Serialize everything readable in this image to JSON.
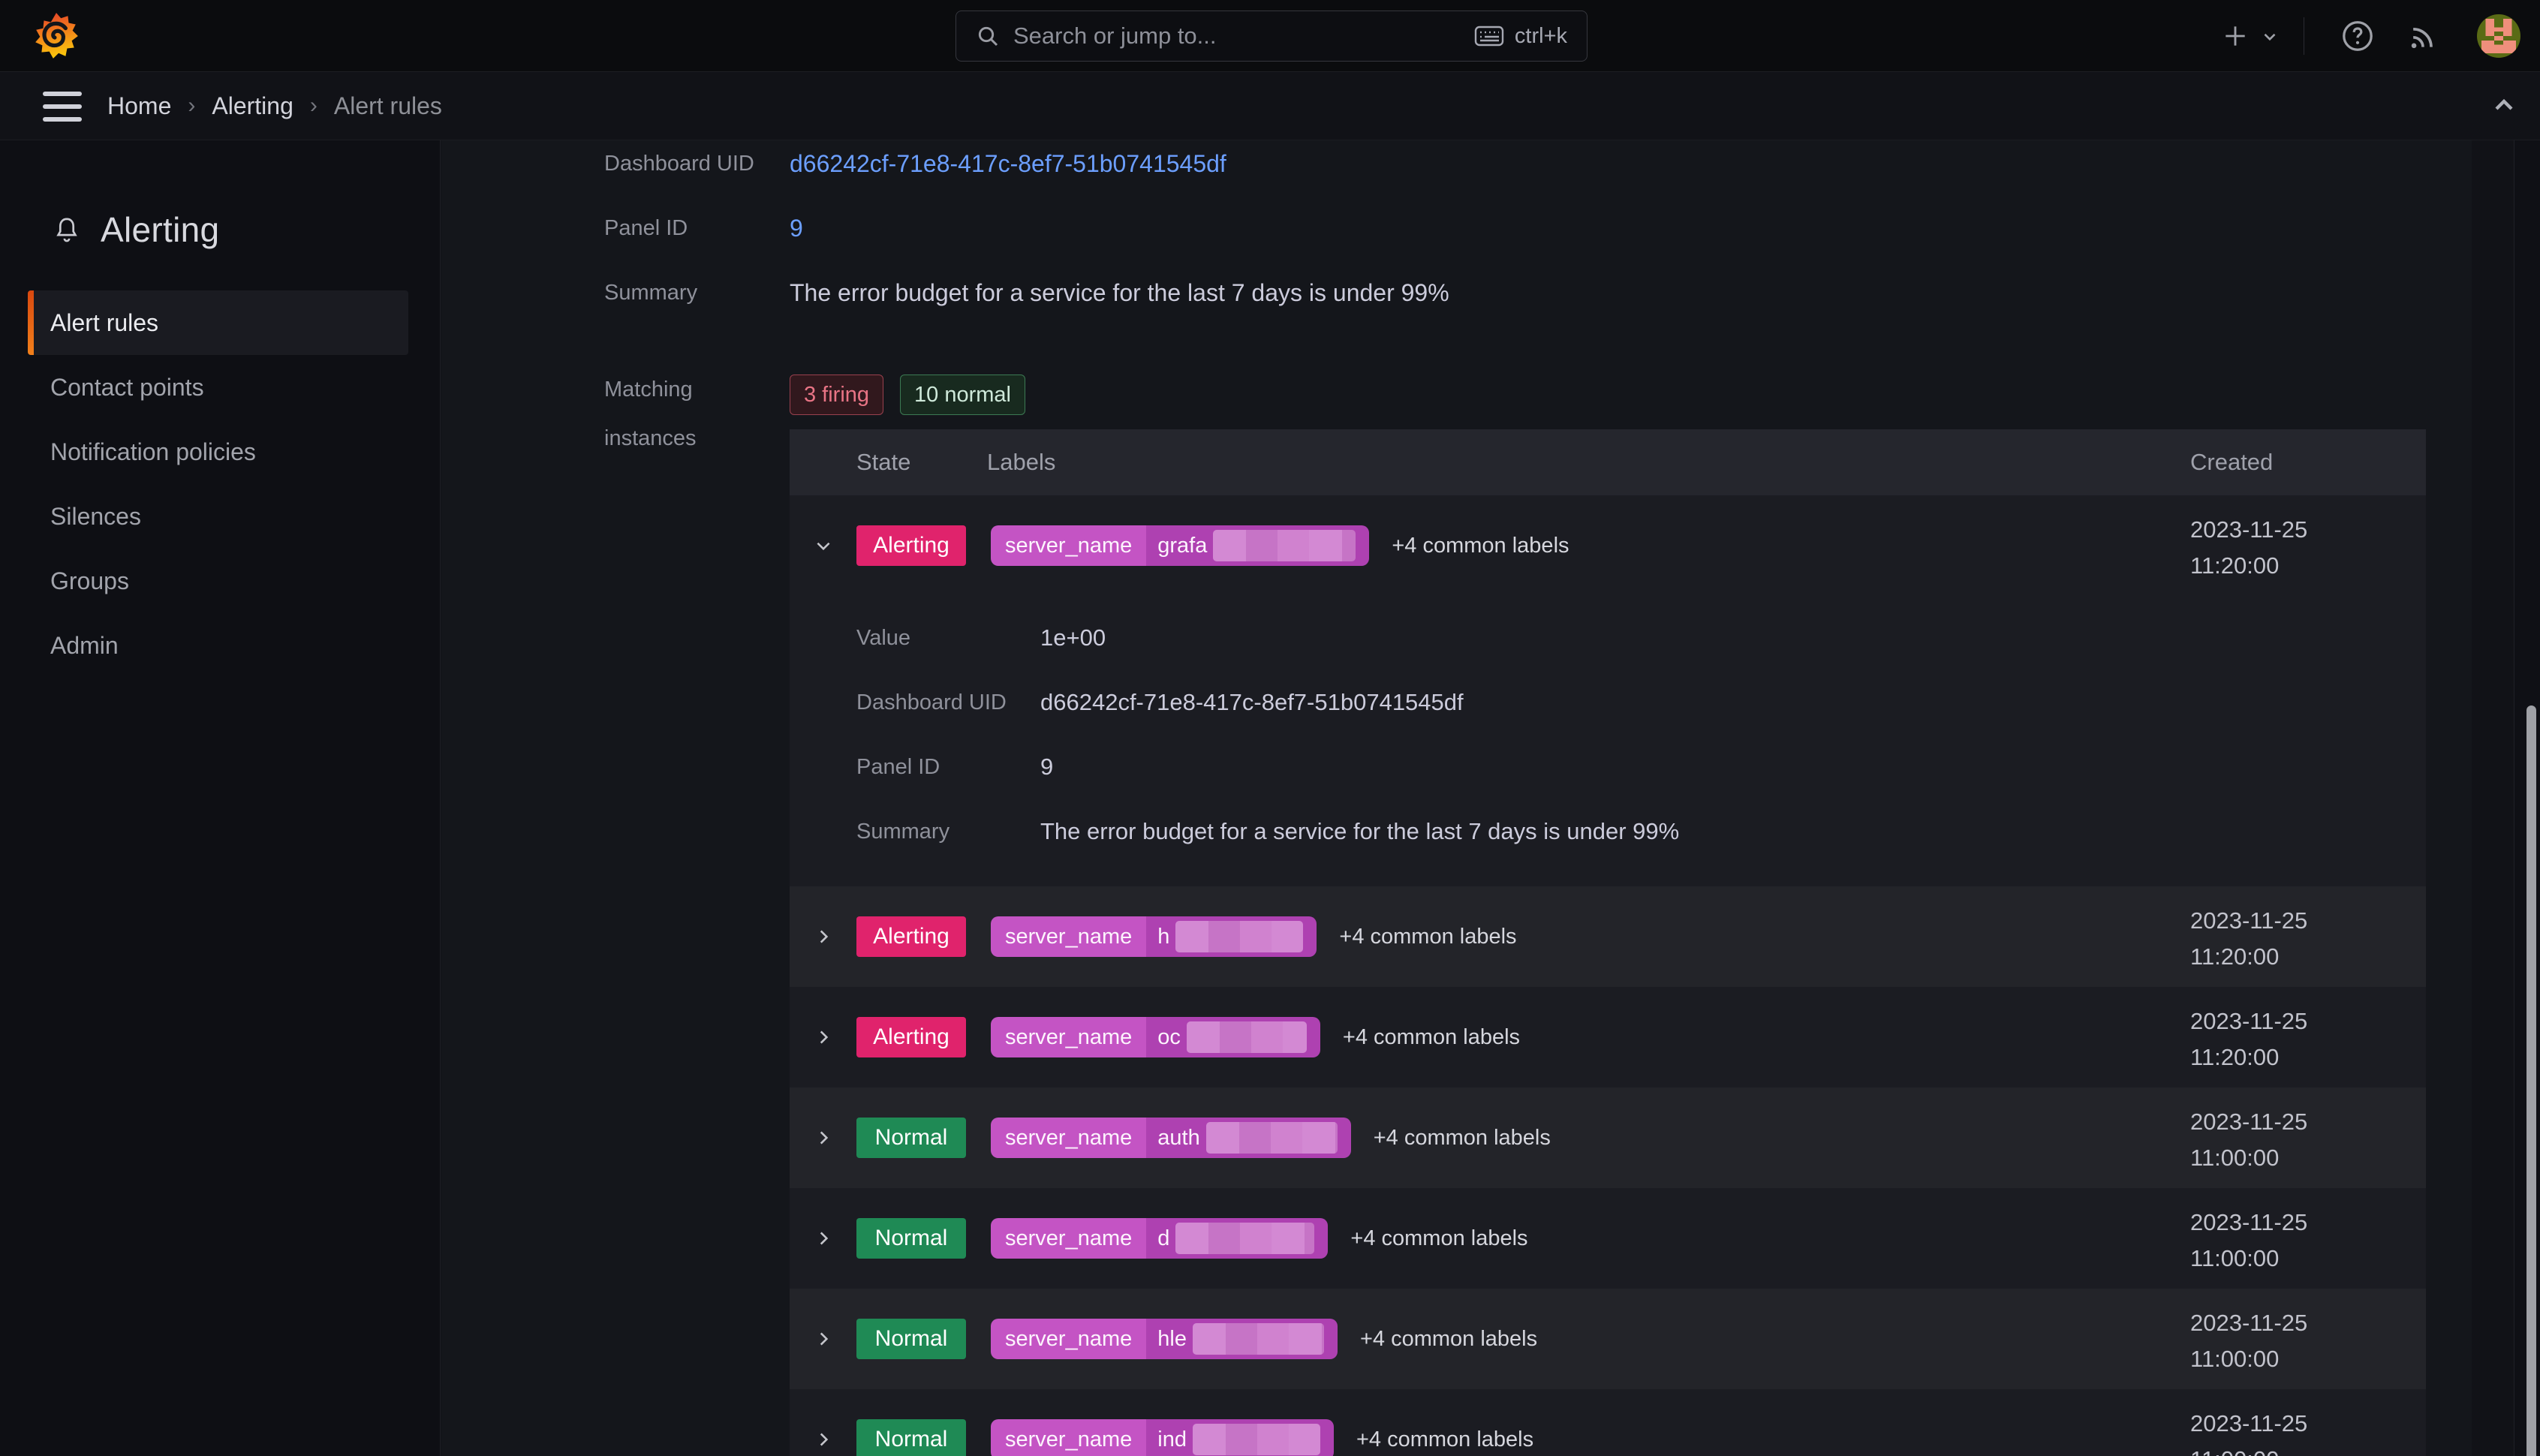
{
  "topbar": {
    "search_placeholder": "Search or jump to...",
    "shortcut": "ctrl+k"
  },
  "breadcrumb": {
    "items": [
      "Home",
      "Alerting",
      "Alert rules"
    ]
  },
  "sidebar": {
    "title": "Alerting",
    "items": [
      "Alert rules",
      "Contact points",
      "Notification policies",
      "Silences",
      "Groups",
      "Admin"
    ],
    "active_item": "Alert rules"
  },
  "rule_fields": [
    {
      "label": "Dashboard UID",
      "value": "d66242cf-71e8-417c-8ef7-51b0741545df",
      "link": true
    },
    {
      "label": "Panel ID",
      "value": "9",
      "link": true
    },
    {
      "label": "Summary",
      "value": "The error budget for a service for the last 7 days is under 99%",
      "link": false
    }
  ],
  "matching": {
    "label": "Matching instances",
    "firing_chip": "3 firing",
    "normal_chip": "10 normal"
  },
  "table": {
    "columns": [
      "State",
      "Labels",
      "Created"
    ],
    "rows": [
      {
        "state": "Alerting",
        "type": "alerting",
        "expanded": true,
        "label_key": "server_name",
        "label_value_visible": "grafa",
        "blur_width": 190,
        "common_labels": "+4 common labels",
        "created_date": "2023-11-25",
        "created_time": "11:20:00",
        "details": [
          {
            "label": "Value",
            "value": "1e+00",
            "link": false
          },
          {
            "label": "Dashboard UID",
            "value": "d66242cf-71e8-417c-8ef7-51b0741545df",
            "link": true
          },
          {
            "label": "Panel ID",
            "value": "9",
            "link": true
          },
          {
            "label": "Summary",
            "value": "The error budget for a service for the last 7 days is under 99%",
            "link": false
          }
        ]
      },
      {
        "state": "Alerting",
        "type": "alerting",
        "label_key": "server_name",
        "label_value_visible": "h",
        "blur_width": 170,
        "common_labels": "+4 common labels",
        "created_date": "2023-11-25",
        "created_time": "11:20:00"
      },
      {
        "state": "Alerting",
        "type": "alerting",
        "label_key": "server_name",
        "label_value_visible": "oc",
        "blur_width": 160,
        "common_labels": "+4 common labels",
        "created_date": "2023-11-25",
        "created_time": "11:20:00"
      },
      {
        "state": "Normal",
        "type": "normal",
        "label_key": "server_name",
        "label_value_visible": "auth",
        "blur_width": 175,
        "common_labels": "+4 common labels",
        "created_date": "2023-11-25",
        "created_time": "11:00:00"
      },
      {
        "state": "Normal",
        "type": "normal",
        "label_key": "server_name",
        "label_value_visible": "d",
        "blur_width": 185,
        "common_labels": "+4 common labels",
        "created_date": "2023-11-25",
        "created_time": "11:00:00"
      },
      {
        "state": "Normal",
        "type": "normal",
        "label_key": "server_name",
        "label_value_visible": "hle",
        "blur_width": 175,
        "common_labels": "+4 common labels",
        "created_date": "2023-11-25",
        "created_time": "11:00:00"
      },
      {
        "state": "Normal",
        "type": "normal",
        "label_key": "server_name",
        "label_value_visible": "ind",
        "blur_width": 170,
        "common_labels": "+4 common labels",
        "created_date": "2023-11-25",
        "created_time": "11:00:00"
      }
    ]
  },
  "colors": {
    "alerting_badge": "#e0236c",
    "normal_badge": "#1f8a55",
    "label_pill": "#c454c4",
    "label_pill_value": "#ae41b1",
    "firing_chip_text": "#e87485",
    "normal_chip_text": "#cfe9da",
    "link": "#6c9fff",
    "accent_orange": "#f2801b"
  }
}
